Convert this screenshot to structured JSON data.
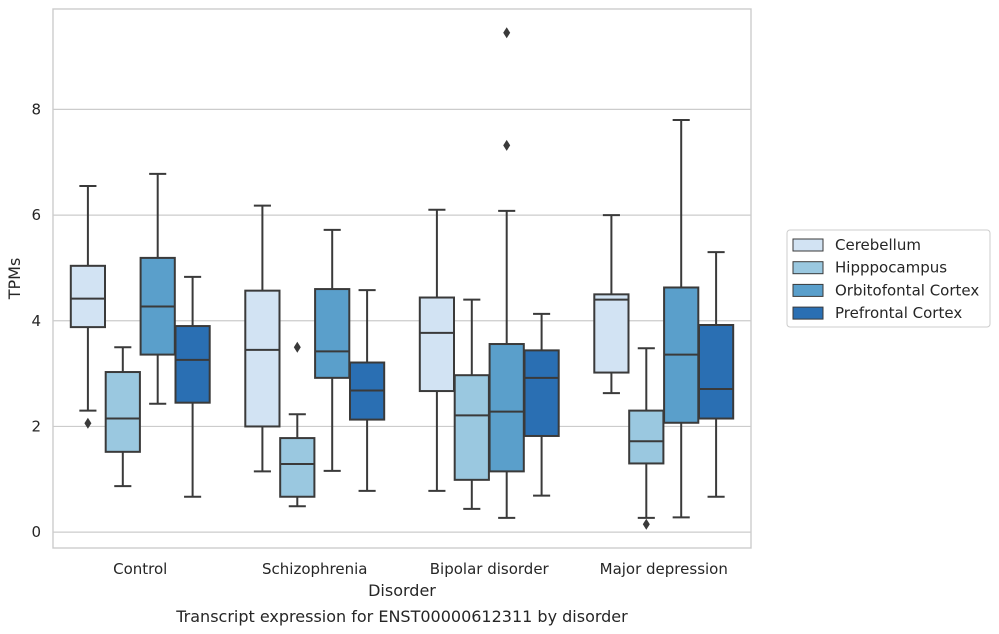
{
  "chart_data": {
    "type": "box",
    "title": "",
    "caption": "Transcript expression for ENST00000612311 by disorder",
    "xlabel": "Disorder",
    "ylabel": "TPMs",
    "ylim": [
      -0.3,
      9.9
    ],
    "yticks": [
      0,
      2,
      4,
      6,
      8
    ],
    "grid": "horizontal",
    "legend_position": "right",
    "categories": [
      "Control",
      "Schizophrenia",
      "Bipolar disorder",
      "Major depression"
    ],
    "series": [
      {
        "name": "Cerebellum",
        "color": "#d2e3f3",
        "boxes": [
          {
            "whislo": 2.3,
            "q1": 3.88,
            "med": 4.42,
            "q3": 5.04,
            "whishi": 6.55,
            "fliers": [
              2.06
            ]
          },
          {
            "whislo": 1.15,
            "q1": 2.0,
            "med": 3.45,
            "q3": 4.57,
            "whishi": 6.18,
            "fliers": []
          },
          {
            "whislo": 0.78,
            "q1": 2.67,
            "med": 3.77,
            "q3": 4.44,
            "whishi": 6.1,
            "fliers": []
          },
          {
            "whislo": 2.63,
            "q1": 3.02,
            "med": 4.4,
            "q3": 4.5,
            "whishi": 6.0,
            "fliers": []
          }
        ]
      },
      {
        "name": "Hipppocampus",
        "color": "#9ac8e0",
        "boxes": [
          {
            "whislo": 0.87,
            "q1": 1.52,
            "med": 2.15,
            "q3": 3.03,
            "whishi": 3.5,
            "fliers": []
          },
          {
            "whislo": 0.49,
            "q1": 0.67,
            "med": 1.29,
            "q3": 1.78,
            "whishi": 2.23,
            "fliers": [
              3.5
            ]
          },
          {
            "whislo": 0.44,
            "q1": 0.99,
            "med": 2.21,
            "q3": 2.97,
            "whishi": 4.4,
            "fliers": []
          },
          {
            "whislo": 0.27,
            "q1": 1.3,
            "med": 1.72,
            "q3": 2.3,
            "whishi": 3.48,
            "fliers": [
              0.15
            ]
          }
        ]
      },
      {
        "name": "Orbitofontal Cortex",
        "color": "#5a9fcb",
        "boxes": [
          {
            "whislo": 2.43,
            "q1": 3.36,
            "med": 4.27,
            "q3": 5.19,
            "whishi": 6.78,
            "fliers": []
          },
          {
            "whislo": 1.16,
            "q1": 2.92,
            "med": 3.42,
            "q3": 4.6,
            "whishi": 5.72,
            "fliers": []
          },
          {
            "whislo": 0.27,
            "q1": 1.15,
            "med": 2.28,
            "q3": 3.56,
            "whishi": 6.08,
            "fliers": [
              7.32,
              9.45
            ]
          },
          {
            "whislo": 0.28,
            "q1": 2.07,
            "med": 3.36,
            "q3": 4.63,
            "whishi": 7.8,
            "fliers": []
          }
        ]
      },
      {
        "name": "Prefrontal Cortex",
        "color": "#2a6fb3",
        "boxes": [
          {
            "whislo": 0.67,
            "q1": 2.45,
            "med": 3.26,
            "q3": 3.9,
            "whishi": 4.83,
            "fliers": []
          },
          {
            "whislo": 0.78,
            "q1": 2.13,
            "med": 2.68,
            "q3": 3.21,
            "whishi": 4.58,
            "fliers": []
          },
          {
            "whislo": 0.69,
            "q1": 1.82,
            "med": 2.92,
            "q3": 3.44,
            "whishi": 4.13,
            "fliers": []
          },
          {
            "whislo": 0.67,
            "q1": 2.15,
            "med": 2.71,
            "q3": 3.92,
            "whishi": 5.3,
            "fliers": []
          }
        ]
      }
    ]
  },
  "colors": {
    "grid": "#cccccc",
    "frame": "#cccccc",
    "box_edge": "#3a3a3a",
    "text": "#262626"
  }
}
